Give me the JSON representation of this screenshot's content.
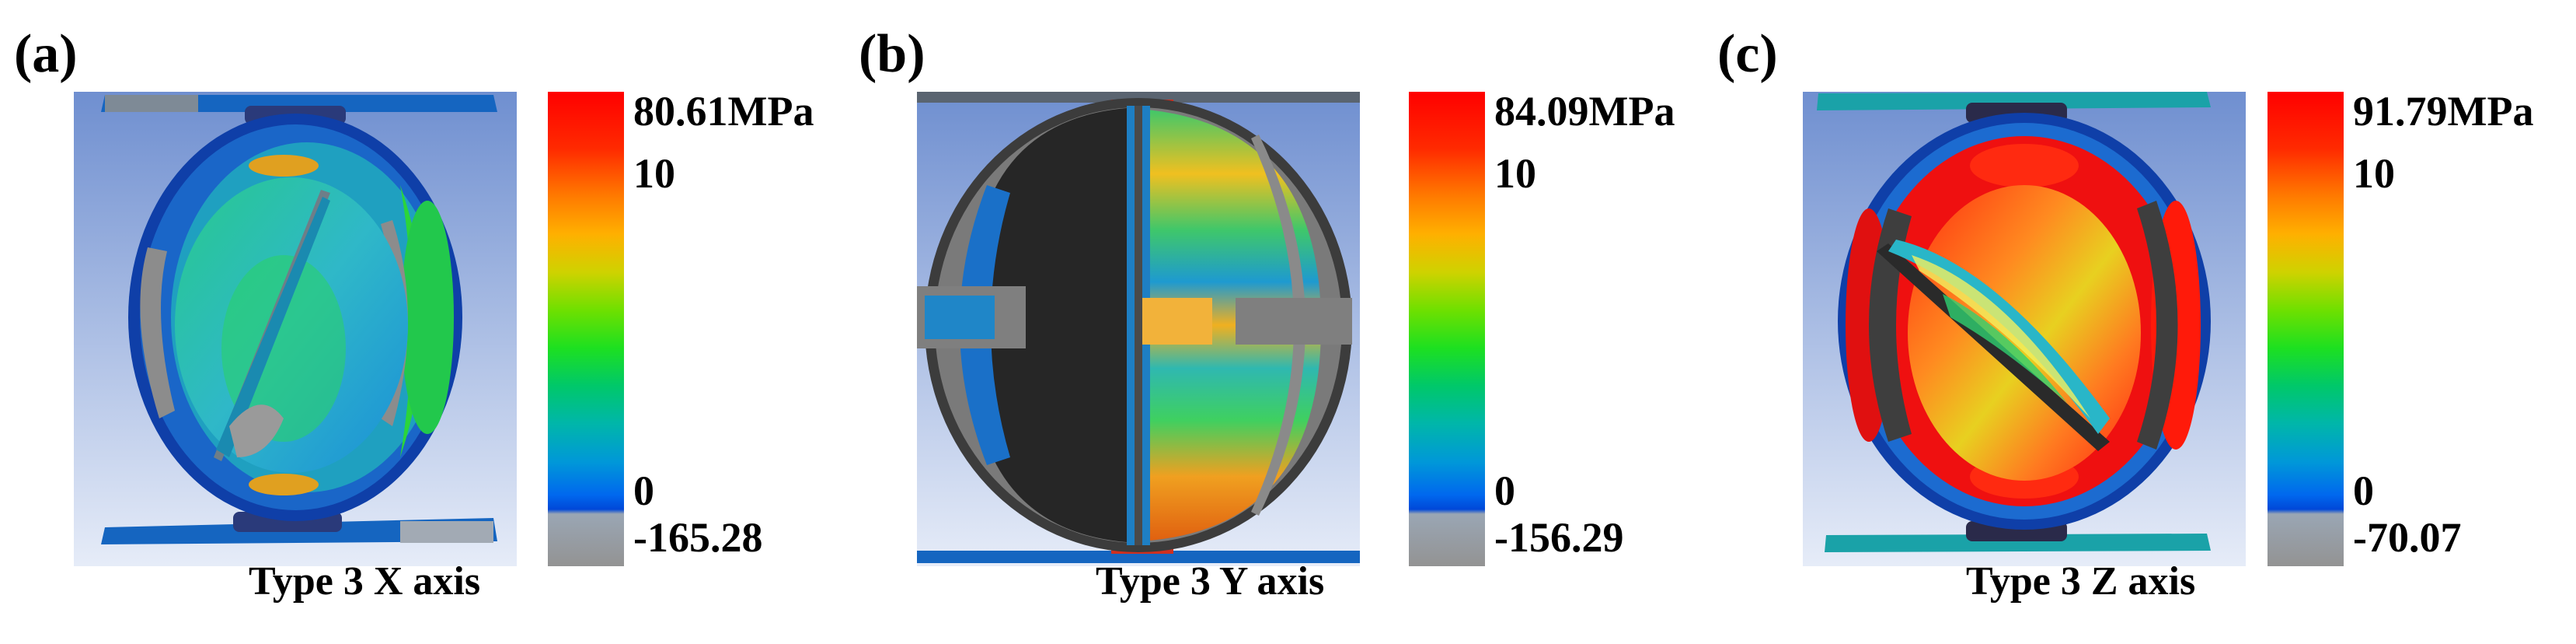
{
  "panels": [
    {
      "label": "(a)",
      "caption": "Type 3 X axis",
      "colorbar": {
        "max": "80.61MPa",
        "upper": "10",
        "zero": "0",
        "min": "-165.28"
      }
    },
    {
      "label": "(b)",
      "caption": "Type 3 Y axis",
      "colorbar": {
        "max": "84.09MPa",
        "upper": "10",
        "zero": "0",
        "min": "-156.29"
      }
    },
    {
      "label": "(c)",
      "caption": "Type 3 Z axis",
      "colorbar": {
        "max": "91.79MPa",
        "upper": "10",
        "zero": "0",
        "min": "-70.07"
      }
    }
  ],
  "colors": {
    "background_top": "#6f8fd0",
    "background_bottom": "#e6ecf8",
    "stress_high": "#ff0000",
    "stress_low": "#0048d8",
    "stress_neg": "#939393"
  }
}
